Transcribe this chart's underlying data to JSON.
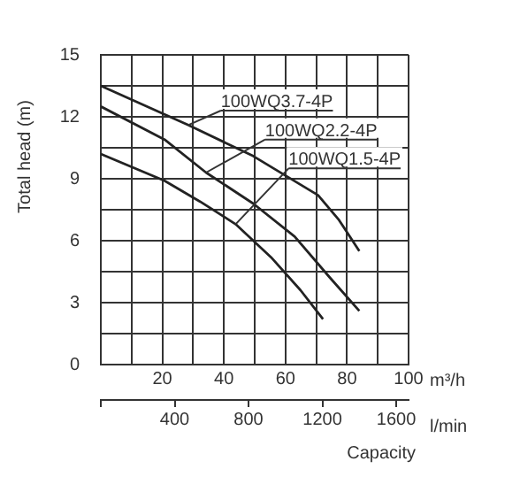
{
  "chart_data": {
    "type": "line",
    "xlabel": "m³/h",
    "ylabel": "Total head (m)",
    "x2label": "l/min",
    "annotations": [
      "Capacity"
    ],
    "xlim": [
      0,
      100
    ],
    "xticks": [
      {
        "value": 0,
        "label": null
      },
      {
        "value": 10,
        "label": null
      },
      20,
      {
        "value": 30,
        "label": null
      },
      40,
      {
        "value": 50,
        "label": null
      },
      60,
      {
        "value": 70,
        "label": null
      },
      80,
      {
        "value": 90,
        "label": null
      },
      100
    ],
    "x2lim": [
      0,
      1667
    ],
    "x2ticks": [
      {
        "value": 0,
        "label": null
      },
      400,
      800,
      1200,
      1600
    ],
    "ylim": [
      0,
      15
    ],
    "yticks": [
      0,
      {
        "value": 1.5,
        "label": null
      },
      3,
      {
        "value": 4.5,
        "label": null
      },
      6,
      {
        "value": 7.5,
        "label": null
      },
      9,
      {
        "value": 10.5,
        "label": null
      },
      12,
      {
        "value": 13.5,
        "label": null
      },
      15
    ],
    "grid": true,
    "legend": false,
    "marker": "none",
    "line_style": "solid",
    "series": [
      {
        "name": "100WQ3.7-4P",
        "color": "#222222",
        "x": [
          0,
          28.4,
          49.5,
          70.6,
          77.4,
          84
        ],
        "values": [
          13.5,
          11.6,
          10.1,
          8.2,
          7.0,
          5.5
        ]
      },
      {
        "name": "100WQ2.2-4P",
        "color": "#222222",
        "x": [
          0,
          20.7,
          34.2,
          49.5,
          63,
          74.5,
          84
        ],
        "values": [
          12.5,
          10.9,
          9.3,
          7.8,
          6.2,
          4.2,
          2.6
        ]
      },
      {
        "name": "100WQ1.5-4P",
        "color": "#222222",
        "x": [
          0,
          20.7,
          32.2,
          43.8,
          55.3,
          64.9,
          72.2
        ],
        "values": [
          10.2,
          8.9,
          7.9,
          6.8,
          5.2,
          3.6,
          2.2
        ]
      }
    ]
  }
}
